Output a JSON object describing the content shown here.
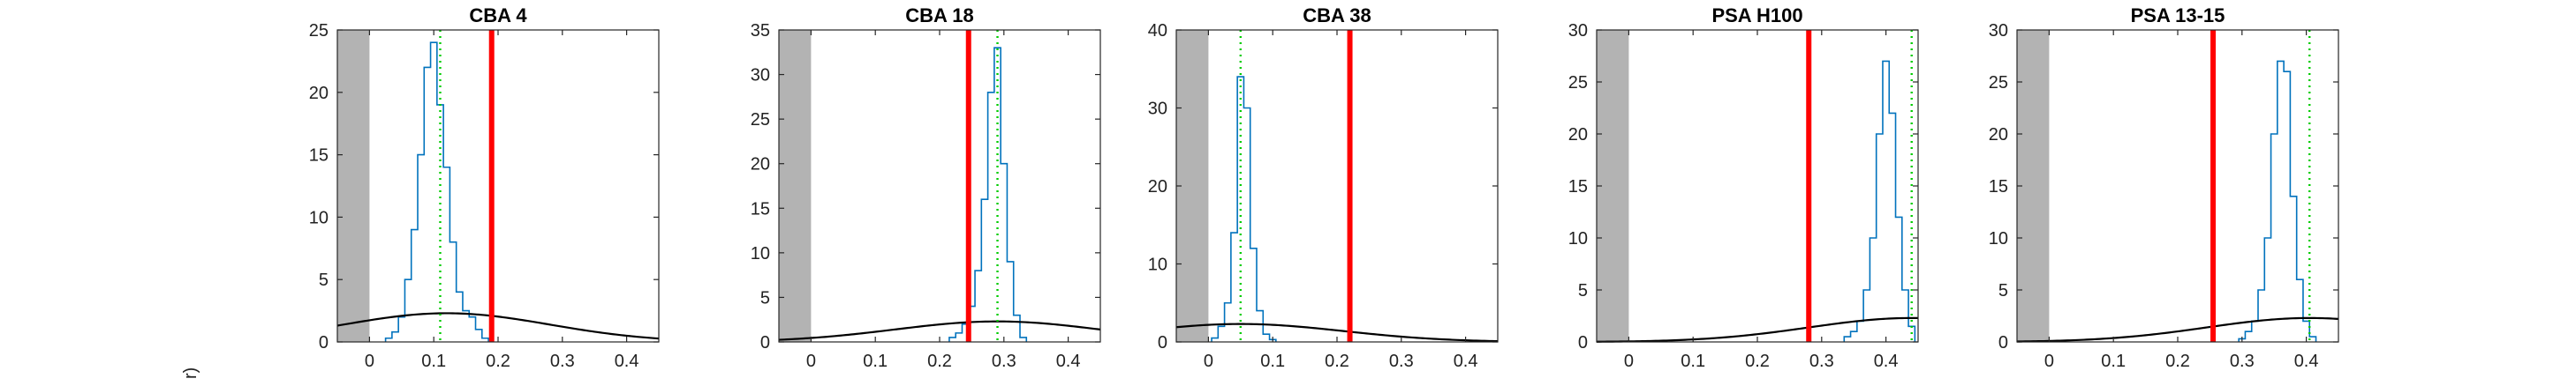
{
  "figure": {
    "ylabel_fragment": "r)"
  },
  "chart_data": [
    {
      "type": "histogram",
      "title": "CBA 4",
      "xlim": [
        -0.05,
        0.45
      ],
      "ylim": [
        0,
        25
      ],
      "xticks": [
        0,
        0.1,
        0.2,
        0.3,
        0.4
      ],
      "yticks": [
        0,
        5,
        10,
        15,
        20,
        25
      ],
      "shaded_region": [
        -0.05,
        0
      ],
      "observed_line_x": 0.19,
      "dotted_line_x": 0.11,
      "histogram": {
        "x": [
          0.03,
          0.04,
          0.05,
          0.06,
          0.07,
          0.08,
          0.09,
          0.1,
          0.11,
          0.12,
          0.13,
          0.14,
          0.15,
          0.16,
          0.17,
          0.18
        ],
        "y": [
          0.3,
          0.8,
          2,
          5,
          9,
          15,
          22,
          24,
          19,
          14,
          8,
          4,
          2.5,
          2,
          1,
          0.3
        ]
      },
      "curve": {
        "mu": 0.12,
        "sigma": 0.16,
        "peak": 2.3
      }
    },
    {
      "type": "histogram",
      "title": "CBA 18",
      "xlim": [
        -0.05,
        0.45
      ],
      "ylim": [
        0,
        35
      ],
      "xticks": [
        0,
        0.1,
        0.2,
        0.3,
        0.4
      ],
      "yticks": [
        0,
        5,
        10,
        15,
        20,
        25,
        30,
        35
      ],
      "shaded_region": [
        -0.05,
        0
      ],
      "observed_line_x": 0.245,
      "dotted_line_x": 0.29,
      "histogram": {
        "x": [
          0.22,
          0.23,
          0.24,
          0.25,
          0.26,
          0.27,
          0.28,
          0.29,
          0.3,
          0.31,
          0.32,
          0.33
        ],
        "y": [
          0.5,
          1,
          2,
          4,
          8,
          16,
          28,
          33,
          20,
          9,
          3,
          0.5
        ]
      },
      "curve": {
        "mu": 0.29,
        "sigma": 0.16,
        "peak": 2.3
      }
    },
    {
      "type": "histogram",
      "title": "CBA 38",
      "xlim": [
        -0.05,
        0.45
      ],
      "ylim": [
        0,
        40
      ],
      "xticks": [
        0,
        0.1,
        0.2,
        0.3,
        0.4
      ],
      "yticks": [
        0,
        10,
        20,
        30,
        40
      ],
      "shaded_region": [
        -0.05,
        0
      ],
      "observed_line_x": 0.22,
      "dotted_line_x": 0.05,
      "histogram": {
        "x": [
          0.01,
          0.02,
          0.03,
          0.04,
          0.05,
          0.06,
          0.07,
          0.08,
          0.09,
          0.1
        ],
        "y": [
          0.5,
          2,
          5,
          14,
          34,
          30,
          12,
          4,
          1,
          0.3
        ]
      },
      "curve": {
        "mu": 0.05,
        "sigma": 0.16,
        "peak": 2.3
      }
    },
    {
      "type": "histogram",
      "title": "PSA H100",
      "xlim": [
        -0.05,
        0.45
      ],
      "ylim": [
        0,
        30
      ],
      "xticks": [
        0,
        0.1,
        0.2,
        0.3,
        0.4
      ],
      "yticks": [
        0,
        5,
        10,
        15,
        20,
        25,
        30
      ],
      "shaded_region": [
        -0.05,
        0
      ],
      "observed_line_x": 0.28,
      "dotted_line_x": 0.44,
      "histogram": {
        "x": [
          0.34,
          0.35,
          0.36,
          0.37,
          0.38,
          0.39,
          0.4,
          0.41,
          0.42,
          0.43,
          0.44
        ],
        "y": [
          0.5,
          1,
          2,
          5,
          10,
          20,
          27,
          22,
          12,
          5,
          1.5
        ]
      },
      "curve": {
        "mu": 0.44,
        "sigma": 0.16,
        "peak": 2.3
      }
    },
    {
      "type": "histogram",
      "title": "PSA 13-15",
      "xlim": [
        -0.05,
        0.45
      ],
      "ylim": [
        0,
        30
      ],
      "xticks": [
        0,
        0.1,
        0.2,
        0.3,
        0.4
      ],
      "yticks": [
        0,
        5,
        10,
        15,
        20,
        25,
        30
      ],
      "shaded_region": [
        -0.05,
        0
      ],
      "observed_line_x": 0.255,
      "dotted_line_x": 0.405,
      "histogram": {
        "x": [
          0.3,
          0.31,
          0.32,
          0.33,
          0.34,
          0.35,
          0.36,
          0.37,
          0.38,
          0.39,
          0.4,
          0.41
        ],
        "y": [
          0.3,
          1,
          2,
          5,
          10,
          20,
          27,
          26,
          14,
          6,
          2,
          0.5
        ]
      },
      "curve": {
        "mu": 0.405,
        "sigma": 0.16,
        "peak": 2.3
      }
    }
  ]
}
